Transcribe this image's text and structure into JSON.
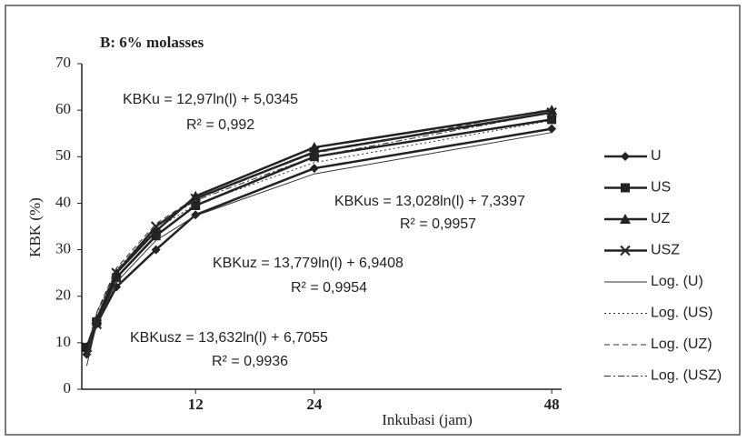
{
  "chart_data": {
    "type": "line",
    "title": "B: 6% molasses",
    "y_label": "KBK (%)",
    "x_label": "Inkubasi (jam)",
    "x": [
      1,
      2,
      4,
      8,
      12,
      24,
      48
    ],
    "xlim": [
      0.5,
      49
    ],
    "xticks": [
      12,
      24,
      48
    ],
    "ylim": [
      0,
      70
    ],
    "yticks": [
      0,
      10,
      20,
      30,
      40,
      50,
      60,
      70
    ],
    "series": [
      {
        "name": "U",
        "color": "#222222",
        "marker": "diamond",
        "values": [
          7.5,
          14,
          22,
          30,
          37.5,
          47.5,
          56
        ]
      },
      {
        "name": "US",
        "color": "#222222",
        "marker": "square",
        "values": [
          9,
          14.5,
          24,
          33,
          39.5,
          50,
          58
        ]
      },
      {
        "name": "UZ",
        "color": "#222222",
        "marker": "triangle",
        "values": [
          9,
          15,
          25,
          34,
          41.5,
          52,
          60
        ]
      },
      {
        "name": "USZ",
        "color": "#222222",
        "marker": "x",
        "values": [
          9,
          14,
          25,
          35,
          41,
          51,
          59.5
        ]
      },
      {
        "name": "Log. (U)",
        "color": "#333333",
        "dash": "solid",
        "values": [
          5.03,
          14.02,
          23.0,
          32.0,
          37.3,
          46.3,
          55.2
        ]
      },
      {
        "name": "Log. (US)",
        "color": "#333333",
        "dash": "dotted",
        "values": [
          7.34,
          16.37,
          25.4,
          34.43,
          39.71,
          48.74,
          57.77
        ]
      },
      {
        "name": "Log. (UZ)",
        "color": "#333333",
        "dash": "dashed",
        "values": [
          6.94,
          16.49,
          26.04,
          35.59,
          41.18,
          50.73,
          60.28
        ]
      },
      {
        "name": "Log. (USZ)",
        "color": "#333333",
        "dash": "dashdot",
        "values": [
          6.71,
          16.15,
          25.6,
          35.05,
          40.58,
          50.03,
          59.48
        ]
      }
    ],
    "annotations": [
      "KBKu = 12,97ln(l) + 5,0345",
      "R² = 0,992",
      "KBKus = 13,028ln(l) + 7,3397",
      "R² = 0,9957",
      "KBKuz = 13,779ln(l) + 6,9408",
      "R² = 0,9954",
      "KBKusz = 13,632ln(l) + 6,7055",
      "R² = 0,9936"
    ]
  }
}
